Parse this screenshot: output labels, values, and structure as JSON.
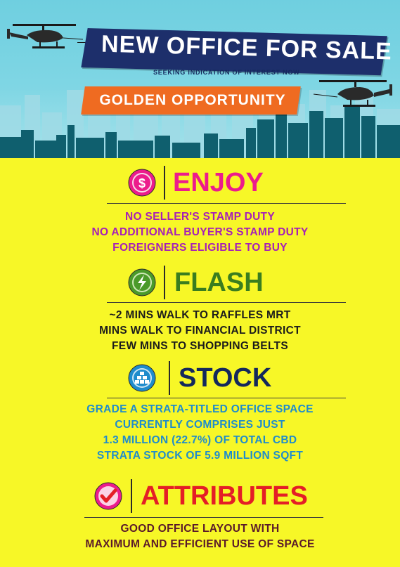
{
  "header": {
    "title": "NEW OFFICE FOR SALE",
    "subtitle": "SEEKING INDICATION OF INTEREST NOW",
    "tagline": "GOLDEN OPPORTUNITY",
    "colors": {
      "sky": "#7fd6e4",
      "navy_banner": "#1d2f6b",
      "orange_banner": "#ef6b21",
      "skyline": "#0f5f6e"
    }
  },
  "sections": [
    {
      "title": "ENJOY",
      "icon": "dollar-icon",
      "title_color": "#ec1c8c",
      "text_color": "#a61fb8",
      "lines": [
        "NO SELLER'S STAMP DUTY",
        "NO ADDITIONAL BUYER'S STAMP DUTY",
        "FOREIGNERS ELIGIBLE TO BUY"
      ]
    },
    {
      "title": "FLASH",
      "icon": "lightning-icon",
      "title_color": "#3a7d1f",
      "text_color": "#1c1c1c",
      "lines": [
        "~2 MINS WALK TO RAFFLES MRT",
        "MINS WALK TO FINANCIAL DISTRICT",
        "FEW MINS TO SHOPPING BELTS"
      ]
    },
    {
      "title": "STOCK",
      "icon": "gold-bars-icon",
      "title_color": "#14285c",
      "text_color": "#1f8ccc",
      "lines": [
        "GRADE A STRATA-TITLED OFFICE SPACE",
        "CURRENTLY COMPRISES JUST",
        "1.3 MILLION (22.7%) OF TOTAL CBD",
        "STRATA STOCK OF 5.9 MILLION SQFT"
      ]
    },
    {
      "title": "ATTRIBUTES",
      "icon": "checkmark-icon",
      "title_color": "#e41e26",
      "text_color": "#5a1a2a",
      "lines": [
        "GOOD OFFICE LAYOUT WITH",
        "MAXIMUM AND EFFICIENT USE OF SPACE"
      ]
    }
  ]
}
